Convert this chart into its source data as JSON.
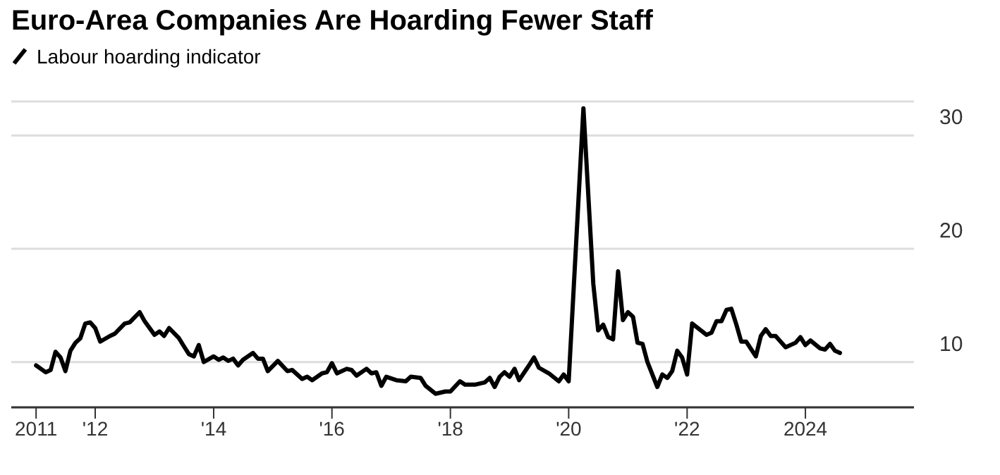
{
  "chart_data": {
    "type": "line",
    "title": "Euro-Area Companies Are Hoarding Fewer Staff",
    "legend": "top left",
    "grid": "y",
    "marker": "none",
    "line_style": "solid",
    "xlim": [
      "2010-08",
      "2025-11"
    ],
    "xticks": [
      {
        "value": "2011-01",
        "label": "2011"
      },
      {
        "value": "2012-01",
        "label": "'12"
      },
      {
        "value": "2014-01",
        "label": "'14"
      },
      {
        "value": "2016-01",
        "label": "'16"
      },
      {
        "value": "2018-01",
        "label": "'18"
      },
      {
        "value": "2020-01",
        "label": "'20"
      },
      {
        "value": "2022-01",
        "label": "'22"
      },
      {
        "value": "2024-01",
        "label": "2024"
      }
    ],
    "ylim": [
      6,
      33
    ],
    "yticks": [
      10,
      20,
      30
    ],
    "x": [
      "2011-01",
      "2011-03",
      "2011-04",
      "2011-05",
      "2011-06",
      "2011-07",
      "2011-08",
      "2011-09",
      "2011-10",
      "2011-11",
      "2011-12",
      "2012-01",
      "2012-02",
      "2012-04",
      "2012-05",
      "2012-07",
      "2012-08",
      "2012-10",
      "2012-11",
      "2013-01",
      "2013-02",
      "2013-03",
      "2013-04",
      "2013-06",
      "2013-07",
      "2013-08",
      "2013-09",
      "2013-10",
      "2013-11",
      "2014-01",
      "2014-02",
      "2014-03",
      "2014-04",
      "2014-05",
      "2014-06",
      "2014-07",
      "2014-09",
      "2014-10",
      "2014-11",
      "2014-12",
      "2015-02",
      "2015-04",
      "2015-05",
      "2015-07",
      "2015-08",
      "2015-09",
      "2015-11",
      "2015-12",
      "2016-01",
      "2016-02",
      "2016-04",
      "2016-05",
      "2016-06",
      "2016-08",
      "2016-09",
      "2016-10",
      "2016-11",
      "2016-12",
      "2017-02",
      "2017-04",
      "2017-05",
      "2017-07",
      "2017-08",
      "2017-10",
      "2017-12",
      "2018-01",
      "2018-03",
      "2018-04",
      "2018-06",
      "2018-08",
      "2018-09",
      "2018-10",
      "2018-11",
      "2018-12",
      "2019-01",
      "2019-02",
      "2019-03",
      "2019-05",
      "2019-06",
      "2019-07",
      "2019-09",
      "2019-11",
      "2019-12",
      "2020-01",
      "2020-04",
      "2020-06",
      "2020-07",
      "2020-08",
      "2020-09",
      "2020-10",
      "2020-11",
      "2020-12",
      "2021-01",
      "2021-02",
      "2021-03",
      "2021-04",
      "2021-05",
      "2021-07",
      "2021-08",
      "2021-09",
      "2021-10",
      "2021-11",
      "2021-12",
      "2022-01",
      "2022-02",
      "2022-05",
      "2022-06",
      "2022-07",
      "2022-08",
      "2022-09",
      "2022-10",
      "2022-11",
      "2022-12",
      "2023-01",
      "2023-03",
      "2023-04",
      "2023-05",
      "2023-06",
      "2023-07",
      "2023-09",
      "2023-11",
      "2023-12",
      "2024-01",
      "2024-02",
      "2024-04",
      "2024-05",
      "2024-06",
      "2024-07",
      "2024-08"
    ],
    "series": [
      {
        "name": "Labour hoarding indicator",
        "color": "#000000",
        "values": [
          9.7,
          9.1,
          9.3,
          10.9,
          10.4,
          9.2,
          11.0,
          11.7,
          12.1,
          13.4,
          13.5,
          13.0,
          11.8,
          12.3,
          12.5,
          13.4,
          13.5,
          14.4,
          13.6,
          12.4,
          12.7,
          12.3,
          13.0,
          12.1,
          11.4,
          10.7,
          10.5,
          11.5,
          10.0,
          10.5,
          10.2,
          10.4,
          10.1,
          10.3,
          9.7,
          10.2,
          10.8,
          10.3,
          10.3,
          9.2,
          10.1,
          9.2,
          9.3,
          8.5,
          8.7,
          8.4,
          9.0,
          9.1,
          9.9,
          9.0,
          9.4,
          9.3,
          8.8,
          9.4,
          9.0,
          9.1,
          7.9,
          8.7,
          8.4,
          8.3,
          8.7,
          8.6,
          7.9,
          7.2,
          7.4,
          7.4,
          8.3,
          8.0,
          8.0,
          8.2,
          8.6,
          7.8,
          8.7,
          9.1,
          8.7,
          9.4,
          8.4,
          9.7,
          10.4,
          9.5,
          9.0,
          8.3,
          8.9,
          8.3,
          32.4,
          16.9,
          12.8,
          13.3,
          12.2,
          12.0,
          18.0,
          13.7,
          14.4,
          14.0,
          11.7,
          11.6,
          10.0,
          7.8,
          8.9,
          8.6,
          9.2,
          11.0,
          10.4,
          8.9,
          13.4,
          12.4,
          12.6,
          13.6,
          13.6,
          14.6,
          14.7,
          13.3,
          11.8,
          11.8,
          10.5,
          12.3,
          12.9,
          12.3,
          12.3,
          11.3,
          11.7,
          12.2,
          11.5,
          11.9,
          11.2,
          11.1,
          11.6,
          11.0,
          10.8
        ]
      }
    ]
  }
}
